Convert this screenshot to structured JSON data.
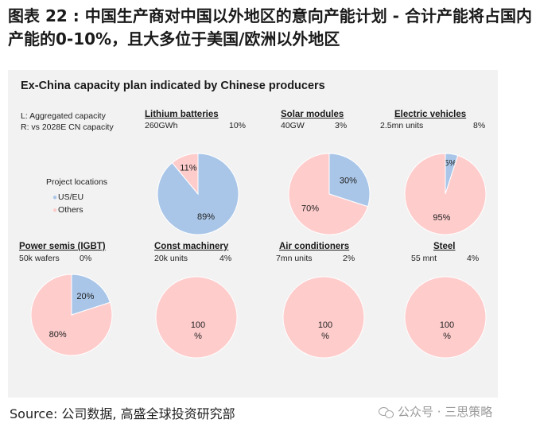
{
  "figure": {
    "title": "图表 22 : 中国生产商对中国以外地区的意向产能计划 - 合计产能将占国内产能的0-10%，且大多位于美国/欧洲以外地区",
    "source": "Source: 公司数据, 高盛全球投资研究部",
    "watermark": "公众号 · 三思策略"
  },
  "panel": {
    "title": "Ex-China capacity plan indicated by Chinese producers",
    "legend_l": "L: Aggregated capacity",
    "legend_r": "R: vs 2028E CN capacity",
    "locations_title": "Project locations",
    "loc_us_eu": "US/EU",
    "loc_others": "Others"
  },
  "colors": {
    "us_eu": "#a9c6e8",
    "others": "#ffcccc",
    "panel_bg": "#f2f2f2"
  },
  "chart_data": [
    {
      "type": "pie",
      "title": "Lithium batteries",
      "capacity": "260GWh",
      "vs_cn": "10%",
      "categories": [
        "US/EU",
        "Others"
      ],
      "values": [
        89,
        11
      ],
      "labels": [
        "89%",
        "11%"
      ]
    },
    {
      "type": "pie",
      "title": "Solar modules",
      "capacity": "40GW",
      "vs_cn": "3%",
      "categories": [
        "US/EU",
        "Others"
      ],
      "values": [
        30,
        70
      ],
      "labels": [
        "30%",
        "70%"
      ]
    },
    {
      "type": "pie",
      "title": "Electric vehicles",
      "capacity": "2.5mn units",
      "vs_cn": "8%",
      "categories": [
        "US/EU",
        "Others"
      ],
      "values": [
        5,
        95
      ],
      "labels": [
        "5%",
        "95%"
      ]
    },
    {
      "type": "pie",
      "title": "Power semis (IGBT)",
      "capacity": "50k wafers",
      "vs_cn": "0%",
      "categories": [
        "US/EU",
        "Others"
      ],
      "values": [
        20,
        80
      ],
      "labels": [
        "20%",
        "80%"
      ]
    },
    {
      "type": "pie",
      "title": "Const machinery",
      "capacity": "20k units",
      "vs_cn": "4%",
      "categories": [
        "US/EU",
        "Others"
      ],
      "values": [
        0,
        100
      ],
      "labels": [
        "",
        "100 %"
      ]
    },
    {
      "type": "pie",
      "title": "Air conditioners",
      "capacity": "7mn units",
      "vs_cn": "2%",
      "categories": [
        "US/EU",
        "Others"
      ],
      "values": [
        0,
        100
      ],
      "labels": [
        "",
        "100 %"
      ]
    },
    {
      "type": "pie",
      "title": "Steel",
      "capacity": "55 mnt",
      "vs_cn": "4%",
      "categories": [
        "US/EU",
        "Others"
      ],
      "values": [
        0,
        100
      ],
      "labels": [
        "",
        "100 %"
      ]
    }
  ]
}
